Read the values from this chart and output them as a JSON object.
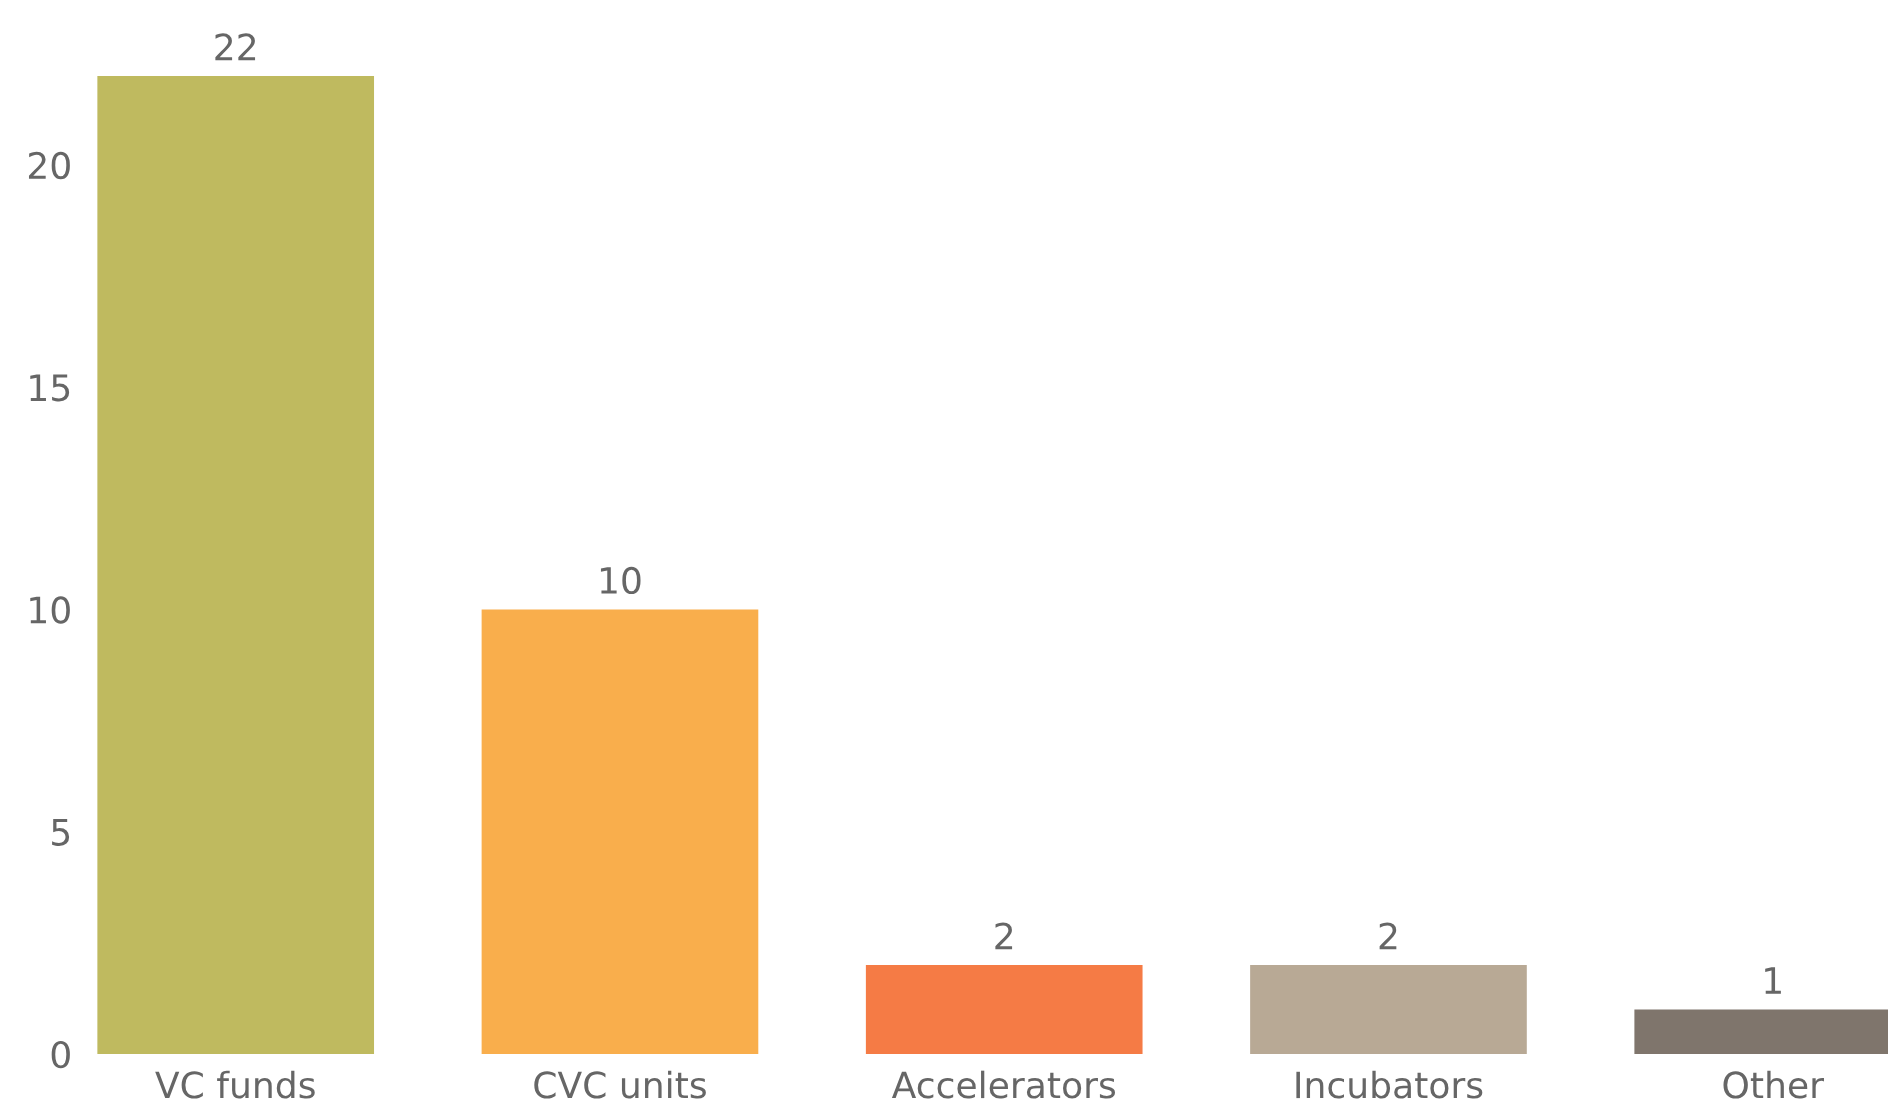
{
  "chart_data": {
    "type": "bar",
    "categories": [
      "VC funds",
      "CVC units",
      "Accelerators",
      "Incubators",
      "Other"
    ],
    "values": [
      22,
      10,
      2,
      2,
      1
    ],
    "colors": [
      "#bfba5f",
      "#f9ae4c",
      "#f57b45",
      "#b8a995",
      "#7f756c"
    ],
    "ylim": [
      0,
      22
    ],
    "yticks": [
      0,
      5,
      10,
      15,
      20
    ],
    "data_labels": true,
    "grid": false,
    "legend": false
  }
}
